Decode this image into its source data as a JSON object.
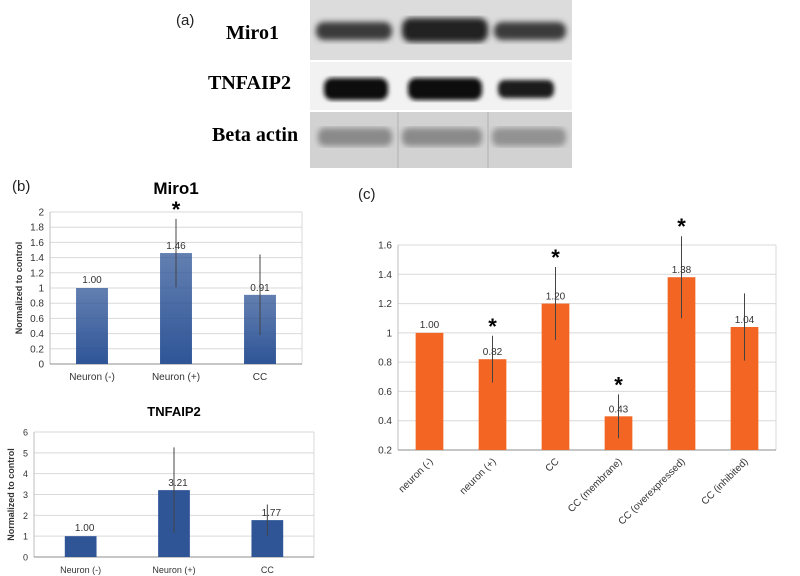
{
  "panels": {
    "a": "(a)",
    "b": "(b)",
    "c": "(c)"
  },
  "blot": {
    "labels": [
      "Miro1",
      "TNFAIP2",
      "Beta actin"
    ]
  },
  "chart_data": [
    {
      "id": "miro1",
      "type": "bar",
      "title": "Miro1",
      "ylabel": "Normalized to control",
      "categories": [
        "Neuron (-)",
        "Neuron (+)",
        "CC"
      ],
      "values": [
        1.0,
        1.46,
        0.91
      ],
      "value_labels": [
        "1.00",
        "1.46",
        "0.91"
      ],
      "errors": [
        0.0,
        0.45,
        0.53
      ],
      "significant": [
        false,
        true,
        false
      ],
      "ylim": [
        0,
        2
      ],
      "yticks": [
        0,
        0.2,
        0.4,
        0.6,
        0.8,
        1,
        1.2,
        1.4,
        1.6,
        1.8,
        2
      ],
      "ytick_labels": [
        "0",
        "0.2",
        "0.4",
        "0.6",
        "0.8",
        "1",
        "1.2",
        "1.4",
        "1.6",
        "1.8",
        "2"
      ],
      "grid": true,
      "color": "#2f5597"
    },
    {
      "id": "tnfaip2",
      "type": "bar",
      "title": "TNFAIP2",
      "ylabel": "Normalized to control",
      "categories": [
        "Neuron (-)",
        "Neuron (+)",
        "CC"
      ],
      "values": [
        1.0,
        3.21,
        1.77
      ],
      "value_labels": [
        "1.00",
        "3.21",
        "1.77"
      ],
      "errors": [
        0.0,
        2.05,
        0.75
      ],
      "significant": [
        false,
        false,
        false
      ],
      "ylim": [
        0,
        6
      ],
      "yticks": [
        0,
        1,
        2,
        3,
        4,
        5,
        6
      ],
      "ytick_labels": [
        "0",
        "1",
        "2",
        "3",
        "4",
        "5",
        "6"
      ],
      "grid": true,
      "color": "#2f5597"
    },
    {
      "id": "panel-c",
      "type": "bar",
      "title": "",
      "ylabel": "",
      "categories": [
        "neuron (-)",
        "neuron (+)",
        "CC",
        "CC (membrane)",
        "CC (overexpressed)",
        "CC (inhibited)"
      ],
      "values": [
        1.0,
        0.82,
        1.2,
        0.43,
        1.38,
        1.04
      ],
      "value_labels": [
        "1.00",
        "0.82",
        "1.20",
        "0.43",
        "1.38",
        "1.04"
      ],
      "errors": [
        0.0,
        0.16,
        0.25,
        0.15,
        0.28,
        0.23
      ],
      "significant": [
        false,
        true,
        true,
        true,
        true,
        false
      ],
      "ylim": [
        0.2,
        1.6
      ],
      "yticks": [
        0.2,
        0.4,
        0.6,
        0.8,
        1,
        1.2,
        1.4,
        1.6
      ],
      "ytick_labels": [
        "0.2",
        "0.4",
        "0.6",
        "0.8",
        "1",
        "1.2",
        "1.4",
        "1.6"
      ],
      "grid": true,
      "color": "#f26522"
    }
  ],
  "significance_marker": "*"
}
